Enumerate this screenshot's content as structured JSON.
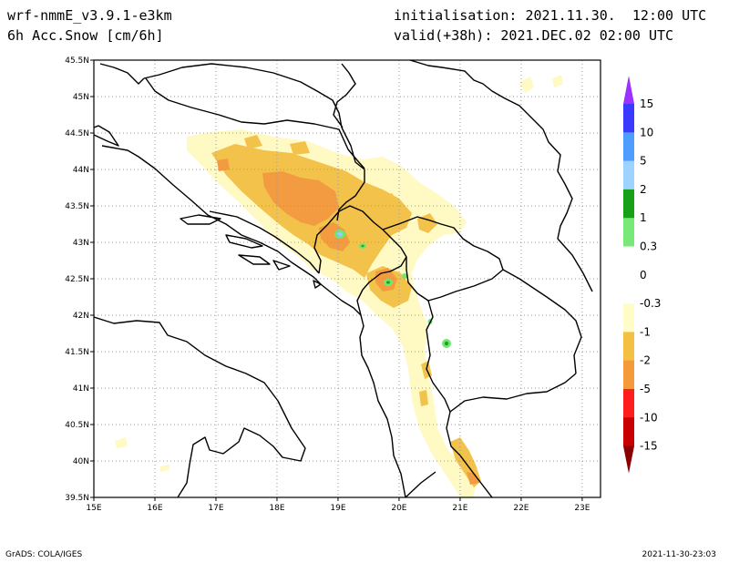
{
  "header": {
    "model": "wrf-nmmE_v3.9.1-e3km",
    "field": "6h Acc.Snow [cm/6h]",
    "init": "initialisation: 2021.11.30.  12:00 UTC",
    "valid": "valid(+38h): 2021.DEC.02 02:00 UTC"
  },
  "footer": {
    "left": "GrADS: COLA/IGES",
    "right": "2021-11-30-23:03"
  },
  "map": {
    "lat_labels": [
      "45.5N",
      "45N",
      "44.5N",
      "44N",
      "43.5N",
      "43N",
      "42.5N",
      "42N",
      "41.5N",
      "41N",
      "40.5N",
      "40N",
      "39.5N"
    ],
    "lon_labels": [
      "15E",
      "16E",
      "17E",
      "18E",
      "19E",
      "20E",
      "21E",
      "22E",
      "23E"
    ],
    "lat_range": [
      39.5,
      45.5
    ],
    "lon_range": [
      15,
      23.3
    ],
    "grid": "dotted"
  },
  "colorbar": {
    "labels": [
      "15",
      "10",
      "5",
      "2",
      "1",
      "0.3",
      "0",
      "-0.3",
      "-1",
      "-2",
      "-5",
      "-10",
      "-15"
    ],
    "colors": [
      "#9b30ff",
      "#3a3aff",
      "#4f9dff",
      "#9fd3ff",
      "#18a018",
      "#78e878",
      "#ffffff",
      "#ffffff",
      "#fffcc8",
      "#f4c044",
      "#f59a3a",
      "#ff1e1e",
      "#c80000",
      "#8c0000"
    ]
  },
  "colors": {
    "light": "#fff9c4",
    "yellow": "#f3c24a",
    "orange": "#f39b40",
    "green_light": "#6fe870",
    "green_dark": "#22a022",
    "blue_light": "#8fd0ff"
  }
}
